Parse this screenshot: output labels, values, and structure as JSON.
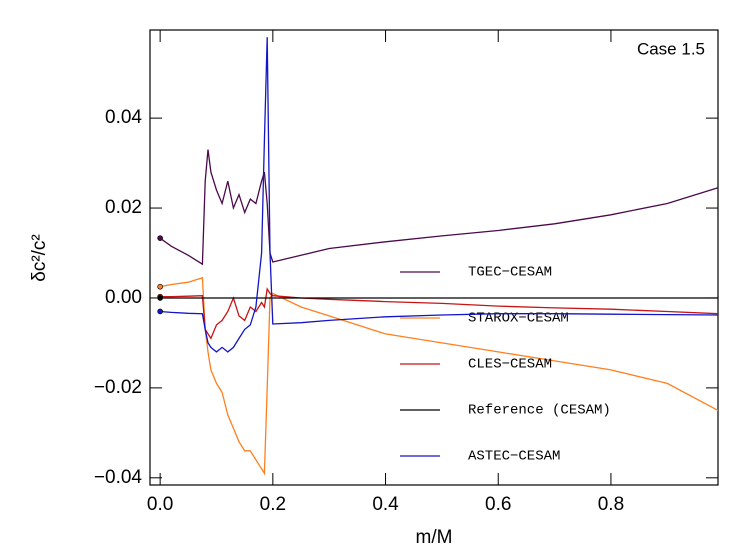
{
  "chart_data": {
    "type": "line",
    "annotation": "Case 1.5",
    "xlabel": "m/M",
    "ylabel": "δc²/c²",
    "x": [
      0,
      0.02,
      0.05,
      0.075,
      0.08,
      0.085,
      0.09,
      0.1,
      0.11,
      0.12,
      0.13,
      0.14,
      0.15,
      0.16,
      0.17,
      0.18,
      0.185,
      0.19,
      0.195,
      0.2,
      0.25,
      0.3,
      0.4,
      0.5,
      0.6,
      0.7,
      0.8,
      0.9,
      0.99
    ],
    "series": [
      {
        "name": "TGEC−CESAM",
        "color": "#4b0a4b",
        "values": [
          0.0133,
          0.0115,
          0.0095,
          0.0075,
          0.026,
          0.033,
          0.028,
          0.024,
          0.021,
          0.026,
          0.02,
          0.023,
          0.019,
          0.022,
          0.021,
          0.026,
          0.028,
          0.021,
          0.01,
          0.008,
          0.0095,
          0.011,
          0.0125,
          0.0138,
          0.015,
          0.0165,
          0.0185,
          0.021,
          0.0245
        ]
      },
      {
        "name": "STAROX−CESAM",
        "color": "#ff7f1e",
        "values": [
          0.0025,
          0.003,
          0.0035,
          0.0045,
          -0.007,
          -0.012,
          -0.016,
          -0.019,
          -0.021,
          -0.026,
          -0.029,
          -0.032,
          -0.034,
          -0.034,
          -0.036,
          -0.038,
          -0.039,
          -0.02,
          0,
          0.001,
          -0.002,
          -0.004,
          -0.008,
          -0.01,
          -0.012,
          -0.014,
          -0.016,
          -0.019,
          -0.025
        ]
      },
      {
        "name": "CLES−CESAM",
        "color": "#c81414",
        "values": [
          0.0003,
          0.0003,
          0.0004,
          0.0005,
          -0.007,
          -0.008,
          -0.009,
          -0.006,
          -0.005,
          -0.003,
          0,
          -0.004,
          -0.005,
          -0.002,
          -0.003,
          -0.001,
          -0.002,
          0.002,
          0.001,
          0.0005,
          0,
          -0.0003,
          -0.0008,
          -0.0012,
          -0.0018,
          -0.0022,
          -0.0025,
          -0.003,
          -0.0035
        ]
      },
      {
        "name": "Reference (CESAM)",
        "color": "#000000",
        "values": [
          0,
          0,
          0,
          0,
          0,
          0,
          0,
          0,
          0,
          0,
          0,
          0,
          0,
          0,
          0,
          0,
          0,
          0,
          0,
          0,
          0,
          0,
          0,
          0,
          0,
          0,
          0,
          0,
          0
        ]
      },
      {
        "name": "ASTEC−CESAM",
        "color": "#1414c8",
        "values": [
          -0.003,
          -0.0032,
          -0.0034,
          -0.0035,
          -0.007,
          -0.01,
          -0.011,
          -0.012,
          -0.011,
          -0.012,
          -0.011,
          -0.009,
          -0.007,
          -0.006,
          -0.002,
          0.01,
          0.035,
          0.058,
          0.01,
          -0.0058,
          -0.0055,
          -0.005,
          -0.0042,
          -0.0038,
          -0.0035,
          -0.0035,
          -0.0036,
          -0.0037,
          -0.0038
        ]
      }
    ],
    "xlim": [
      -0.018,
      0.99
    ],
    "ylim": [
      -0.0416,
      0.0596
    ],
    "xticks": [
      {
        "value": 0,
        "label": "0.0"
      },
      0.2,
      0.4,
      0.6,
      0.8
    ],
    "yticks": [
      {
        "value": -0.04,
        "label": "−0.04"
      },
      {
        "value": -0.02,
        "label": "−0.02"
      },
      {
        "value": 0,
        "label": "0.00"
      },
      {
        "value": 0.02,
        "label": "0.02"
      },
      0.04
    ]
  }
}
